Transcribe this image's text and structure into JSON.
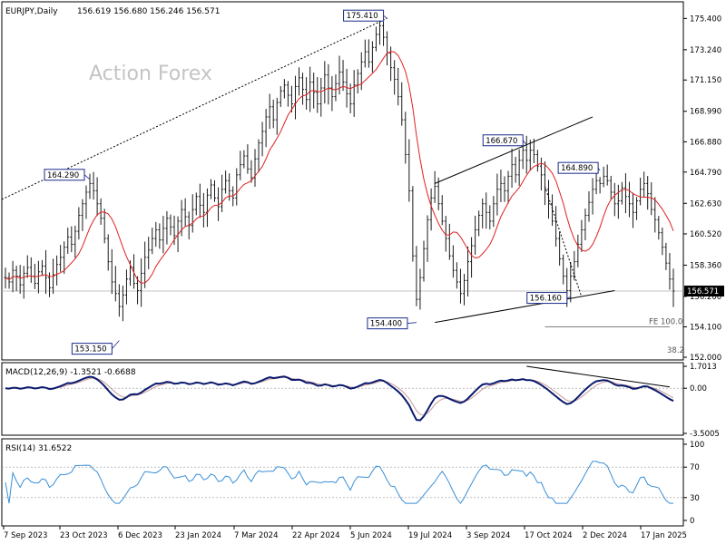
{
  "header": {
    "symbol": "EURJPY,Daily",
    "ohlc": "156.619 156.680 156.246 156.571"
  },
  "watermark": "Action Forex",
  "colors": {
    "candle": "#1a1a1a",
    "ma": "#e02020",
    "macd": "#0a1a6e",
    "signal": "#c89a9a",
    "rsi": "#3a8fd8",
    "trend": "#000000",
    "border": "#000000"
  },
  "chart_data": [
    {
      "type": "candlestick",
      "title": "EURJPY,Daily",
      "price_scale": [
        152.0,
        176.3
      ],
      "y_ticks": [
        "175.400",
        "173.240",
        "171.150",
        "168.990",
        "166.880",
        "164.790",
        "162.630",
        "160.520",
        "158.360",
        "156.200",
        "154.100",
        "152.000"
      ],
      "last_price": "156.571",
      "x_ticks": [
        "7 Sep 2023",
        "23 Oct 2023",
        "6 Dec 2023",
        "23 Jan 2024",
        "7 Mar 2024",
        "22 Apr 2024",
        "5 Jun 2024",
        "19 Jul 2024",
        "3 Sep 2024",
        "17 Oct 2024",
        "2 Dec 2024",
        "17 Jan 2025"
      ],
      "labels": [
        {
          "text": "175.410",
          "idx": 104,
          "value": 175.41
        },
        {
          "text": "164.290",
          "idx": 23,
          "value": 164.29
        },
        {
          "text": "153.150",
          "idx": 31,
          "value": 153.15
        },
        {
          "text": "166.670",
          "idx": 142,
          "value": 166.67
        },
        {
          "text": "164.890",
          "idx": 162,
          "value": 164.89
        },
        {
          "text": "156.160",
          "idx": 154,
          "value": 156.16
        },
        {
          "text": "154.400",
          "idx": 112,
          "value": 154.4
        }
      ],
      "annotations": [
        "FE 100.0",
        "38.2"
      ],
      "series_close": [
        157.5,
        157.2,
        158.0,
        157.6,
        157.0,
        157.8,
        158.2,
        157.6,
        157.1,
        157.9,
        158.3,
        157.5,
        156.8,
        157.7,
        158.4,
        158.9,
        159.6,
        160.3,
        159.8,
        160.7,
        161.8,
        162.6,
        163.4,
        164.0,
        163.5,
        162.6,
        161.6,
        160.2,
        158.6,
        157.2,
        156.4,
        155.5,
        156.3,
        157.4,
        158.2,
        157.1,
        156.6,
        157.8,
        158.9,
        159.4,
        160.2,
        160.8,
        160.1,
        160.9,
        161.6,
        161.0,
        160.4,
        161.4,
        162.2,
        161.7,
        161.1,
        162.2,
        163.1,
        162.5,
        162.0,
        163.2,
        163.9,
        163.0,
        162.4,
        163.6,
        164.2,
        163.5,
        163.0,
        164.6,
        165.3,
        165.9,
        165.0,
        164.4,
        165.7,
        166.8,
        167.6,
        168.6,
        169.3,
        168.4,
        169.6,
        170.4,
        170.8,
        170.1,
        169.5,
        170.7,
        171.3,
        170.5,
        169.8,
        171.0,
        170.3,
        169.5,
        170.6,
        171.5,
        170.6,
        170.0,
        170.9,
        171.7,
        171.0,
        170.2,
        169.5,
        170.8,
        171.6,
        172.4,
        173.1,
        172.4,
        173.4,
        174.3,
        174.9,
        174.1,
        173.0,
        172.0,
        171.2,
        170.0,
        168.4,
        166.0,
        163.5,
        159.0,
        156.0,
        157.5,
        159.5,
        161.5,
        163.0,
        163.8,
        162.6,
        161.4,
        160.2,
        159.0,
        158.0,
        157.2,
        156.4,
        157.3,
        158.6,
        159.7,
        160.8,
        161.8,
        162.6,
        162.0,
        161.4,
        162.6,
        163.6,
        164.0,
        163.5,
        164.5,
        165.3,
        164.6,
        165.6,
        166.3,
        165.6,
        166.3,
        166.0,
        165.2,
        164.6,
        163.6,
        162.6,
        161.4,
        160.2,
        158.8,
        157.6,
        156.6,
        157.6,
        158.6,
        159.8,
        160.8,
        161.8,
        162.7,
        163.6,
        164.2,
        164.0,
        164.5,
        164.2,
        163.4,
        162.6,
        162.8,
        163.7,
        163.1,
        162.6,
        162.0,
        162.8,
        163.6,
        164.0,
        163.3,
        162.2,
        161.5,
        160.6,
        159.6,
        158.5,
        157.4,
        156.57
      ],
      "ma_params": "SMA 20",
      "n_bars": 182
    },
    {
      "type": "line",
      "title": "MACD(12,26,9) -1.3521 -0.6688",
      "y_ticks": [
        "1.7013",
        "0.00",
        "-3.5005"
      ],
      "ylim": [
        -3.5005,
        1.7013
      ]
    },
    {
      "type": "line",
      "title": "RSI(14) 31.6522",
      "y_ticks": [
        "100",
        "70",
        "30",
        "0"
      ],
      "ylim": [
        0,
        100
      ],
      "levels": [
        70,
        30
      ]
    }
  ]
}
